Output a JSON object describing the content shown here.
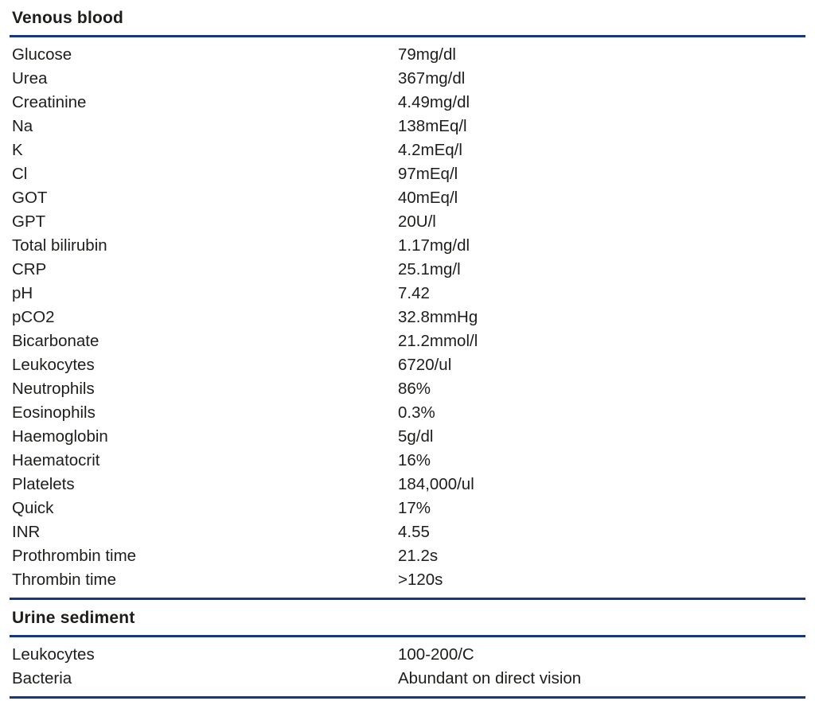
{
  "colors": {
    "background": "#ffffff",
    "rule": "#17387e",
    "text": "#1d1d1b"
  },
  "sections": [
    {
      "title": "Venous blood",
      "rows": [
        {
          "label": "Glucose",
          "value": "79mg/dl"
        },
        {
          "label": "Urea",
          "value": "367mg/dl"
        },
        {
          "label": "Creatinine",
          "value": "4.49mg/dl"
        },
        {
          "label": "Na",
          "value": "138mEq/l"
        },
        {
          "label": "K",
          "value": "4.2mEq/l"
        },
        {
          "label": "Cl",
          "value": "97mEq/l"
        },
        {
          "label": "GOT",
          "value": "40mEq/l"
        },
        {
          "label": "GPT",
          "value": "20U/l"
        },
        {
          "label": "Total bilirubin",
          "value": "1.17mg/dl"
        },
        {
          "label": "CRP",
          "value": "25.1mg/l"
        },
        {
          "label": "pH",
          "value": "7.42"
        },
        {
          "label": "pCO2",
          "value": "32.8mmHg"
        },
        {
          "label": "Bicarbonate",
          "value": "21.2mmol/l"
        },
        {
          "label": "Leukocytes",
          "value": "6720/ul"
        },
        {
          "label": "Neutrophils",
          "value": "86%"
        },
        {
          "label": "Eosinophils",
          "value": "0.3%"
        },
        {
          "label": "Haemoglobin",
          "value": "5g/dl"
        },
        {
          "label": "Haematocrit",
          "value": "16%"
        },
        {
          "label": "Platelets",
          "value": "184,000/ul"
        },
        {
          "label": "Quick",
          "value": "17%"
        },
        {
          "label": "INR",
          "value": "4.55"
        },
        {
          "label": "Prothrombin time",
          "value": "21.2s"
        },
        {
          "label": "Thrombin time",
          "value": ">120s"
        }
      ]
    },
    {
      "title": "Urine sediment",
      "rows": [
        {
          "label": "Leukocytes",
          "value": "100-200/C"
        },
        {
          "label": "Bacteria",
          "value": "Abundant on direct vision"
        }
      ]
    }
  ]
}
